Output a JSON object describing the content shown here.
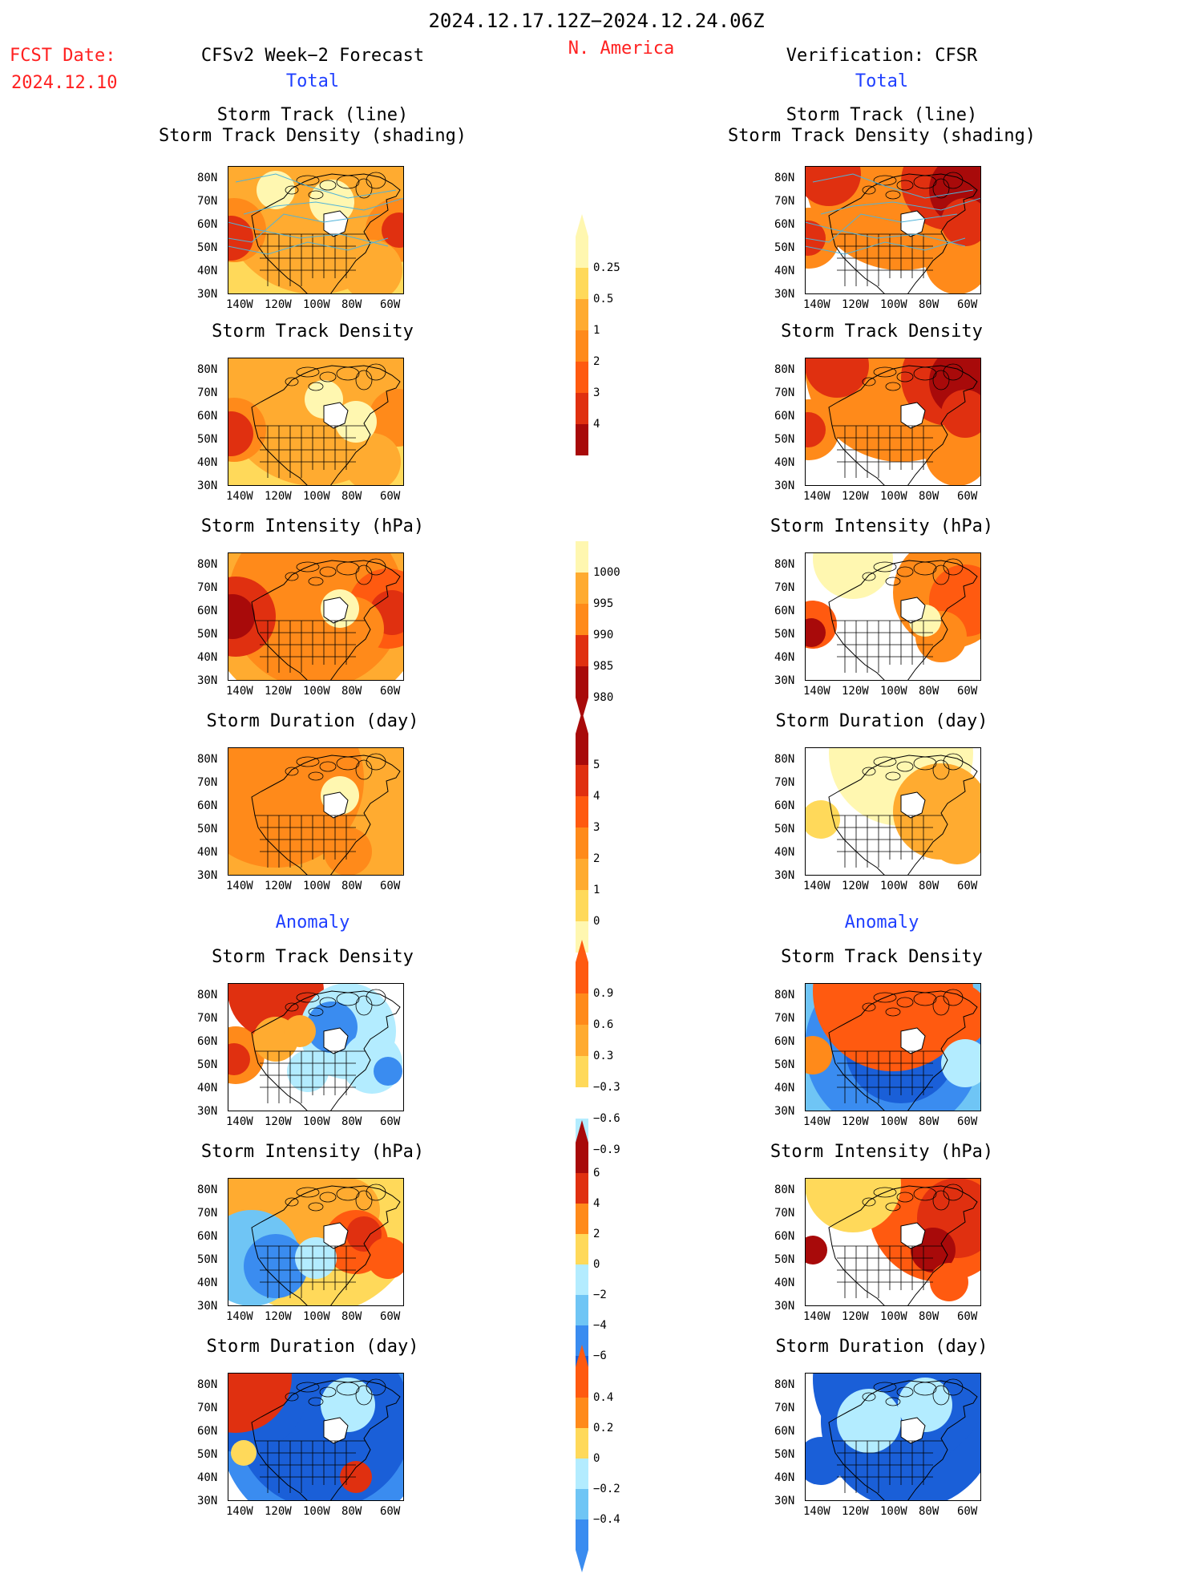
{
  "header": {
    "period": "2024.12.17.12Z−2024.12.24.06Z",
    "region": "N. America",
    "fcst_label": "FCST Date:",
    "fcst_date": "2024.12.10",
    "left_title": "CFSv2 Week−2 Forecast",
    "right_title": "Verification: CFSR",
    "total_left": "Total",
    "total_right": "Total",
    "anomaly_left": "Anomaly",
    "anomaly_right": "Anomaly"
  },
  "panel_titles": {
    "track_line": "Storm Track (line)",
    "track_density_shading": "Storm Track Density (shading)",
    "density": "Storm Track Density",
    "intensity": "Storm Intensity (hPa)",
    "duration": "Storm Duration (day)"
  },
  "axes": {
    "lat": [
      "80N",
      "70N",
      "60N",
      "50N",
      "40N",
      "30N"
    ],
    "lon": [
      "140W",
      "120W",
      "100W",
      "80W",
      "60W"
    ]
  },
  "colors": {
    "c1": "#fff7b0",
    "c2": "#ffd95a",
    "c3": "#ffab30",
    "c4": "#ff8a1a",
    "c5": "#ff5a10",
    "c6": "#e03010",
    "c7": "#a80a0a",
    "b1": "#b3ecff",
    "b2": "#6fc5f5",
    "b3": "#3a8cf0",
    "b4": "#1a5fd8",
    "track": "#4fb3d9"
  },
  "chart_data": [
    {
      "type": "heatmap",
      "name": "Storm Track Density (total)",
      "colorbar": {
        "ticks": [
          "0.25",
          "0.5",
          "1",
          "2",
          "3",
          "4"
        ],
        "colors": [
          "#fff7b0",
          "#ffd95a",
          "#ffab30",
          "#ff8a1a",
          "#ff5a10",
          "#e03010",
          "#a80a0a"
        ]
      }
    },
    {
      "type": "heatmap",
      "name": "Storm Intensity (hPa) (total)",
      "colorbar": {
        "ticks": [
          "1000",
          "995",
          "990",
          "985",
          "980"
        ],
        "colors": [
          "#fff7b0",
          "#ffab30",
          "#ff8a1a",
          "#e03010",
          "#a80a0a"
        ]
      }
    },
    {
      "type": "heatmap",
      "name": "Storm Duration (day) (total)",
      "colorbar": {
        "ticks": [
          "5",
          "4",
          "3",
          "2",
          "1",
          "0"
        ],
        "colors": [
          "#a80a0a",
          "#e03010",
          "#ff5a10",
          "#ff8a1a",
          "#ffab30",
          "#ffd95a",
          "#fff7b0"
        ]
      }
    },
    {
      "type": "heatmap",
      "name": "Storm Track Density (anomaly)",
      "colorbar": {
        "ticks": [
          "0.9",
          "0.6",
          "0.3",
          "−0.3",
          "−0.6",
          "−0.9"
        ],
        "colors": [
          "#ff5a10",
          "#ff8a1a",
          "#ffab30",
          "#ffd95a",
          "#ffffff",
          "#b3ecff",
          "#6fc5f5",
          "#3a8cf0",
          "#1a5fd8"
        ]
      }
    },
    {
      "type": "heatmap",
      "name": "Storm Intensity (hPa) (anomaly)",
      "colorbar": {
        "ticks": [
          "6",
          "4",
          "2",
          "0",
          "−2",
          "−4",
          "−6"
        ],
        "colors": [
          "#a80a0a",
          "#e03010",
          "#ff8a1a",
          "#ffd95a",
          "#b3ecff",
          "#6fc5f5",
          "#3a8cf0",
          "#1a5fd8"
        ]
      }
    },
    {
      "type": "heatmap",
      "name": "Storm Duration (day) (anomaly)",
      "colorbar": {
        "ticks": [
          "0.4",
          "0.2",
          "0",
          "−0.2",
          "−0.4"
        ],
        "colors": [
          "#ff5a10",
          "#ff8a1a",
          "#ffd95a",
          "#b3ecff",
          "#6fc5f5",
          "#3a8cf0"
        ]
      }
    }
  ]
}
